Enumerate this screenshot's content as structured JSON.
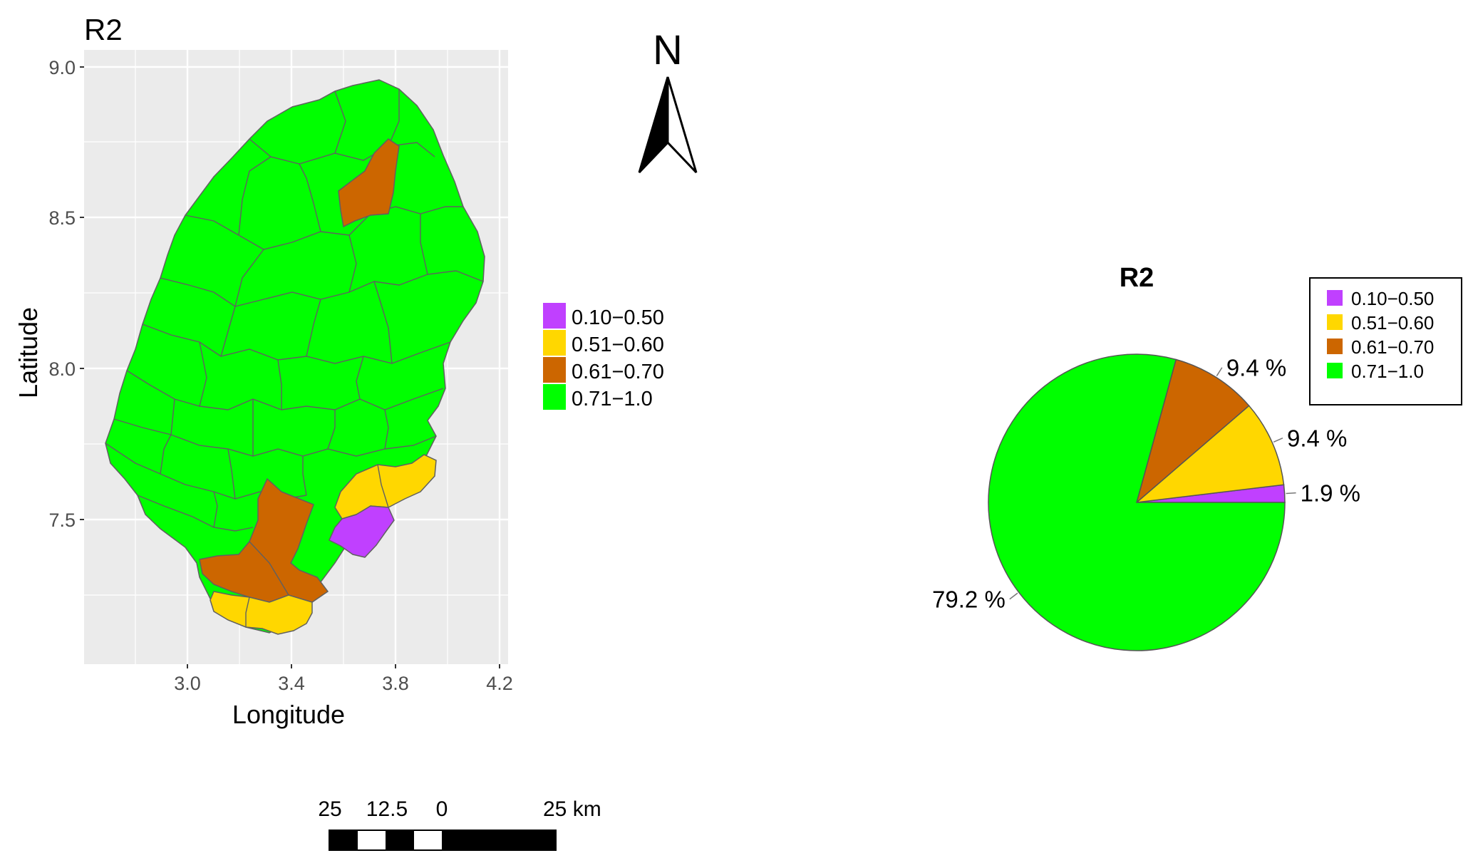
{
  "map": {
    "title": "R2",
    "xlabel": "Longitude",
    "ylabel": "Latitude",
    "x_ticks": [
      "3.0",
      "3.4",
      "3.8",
      "4.2"
    ],
    "y_ticks": [
      "9.0",
      "8.5",
      "8.0",
      "7.5"
    ],
    "panel_background": "#EBEBEB",
    "grid_color": "#FFFFFF",
    "boundary_color": "#707070",
    "legend": [
      {
        "label": "0.10−0.50",
        "color": "#C040FF"
      },
      {
        "label": "0.51−0.60",
        "color": "#FFD700"
      },
      {
        "label": "0.61−0.70",
        "color": "#CC6600"
      },
      {
        "label": "0.71−1.0",
        "color": "#00FF00"
      }
    ]
  },
  "north_arrow": {
    "label": "N"
  },
  "scale_bar": {
    "labels": [
      "25",
      "12.5",
      "0",
      "25 km"
    ]
  },
  "chart_data": {
    "type": "pie",
    "title": "R2",
    "categories": [
      "0.10−0.50",
      "0.51−0.60",
      "0.61−0.70",
      "0.71−1.0"
    ],
    "values": [
      1.9,
      9.4,
      9.4,
      79.2
    ],
    "value_labels": [
      "1.9 %",
      "9.4 %",
      "9.4 %",
      "79.2 %"
    ],
    "colors": [
      "#C040FF",
      "#FFD700",
      "#CC6600",
      "#00FF00"
    ],
    "legend_position": "top-right"
  }
}
